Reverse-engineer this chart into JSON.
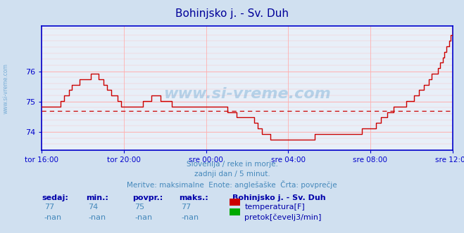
{
  "title": "Bohinjsko j. - Sv. Duh",
  "title_color": "#000099",
  "bg_color": "#d0e0f0",
  "plot_bg_color": "#e8eff8",
  "grid_color": "#ffb0b0",
  "axis_color": "#0000cc",
  "line_color": "#cc0000",
  "avg_value": 74.7,
  "ylim": [
    73.4,
    77.5
  ],
  "yticks": [
    74,
    75,
    76
  ],
  "xtick_labels": [
    "tor 16:00",
    "tor 20:00",
    "sre 00:00",
    "sre 04:00",
    "sre 08:00",
    "sre 12:00"
  ],
  "subtitle1": "Slovenija / reke in morje.",
  "subtitle2": "zadnji dan / 5 minut.",
  "subtitle3": "Meritve: maksimalne  Enote: anglešaške  Črta: povprečje",
  "subtitle_color": "#4488bb",
  "table_header_color": "#0000aa",
  "table_value_color": "#4488bb",
  "station_label": "Bohinjsko j. - Sv. Duh",
  "sedaj": "77",
  "min_val": "74",
  "povpr_val": "75",
  "maks_val": "77",
  "sedaj2": "-nan",
  "min_val2": "-nan",
  "povpr_val2": "-nan",
  "maks_val2": "-nan",
  "temp_color": "#cc0000",
  "pretok_color": "#00aa00",
  "watermark_color": "#5599cc",
  "side_label_color": "#5599cc",
  "temp_data": [
    74.84,
    74.84,
    74.84,
    74.84,
    74.84,
    74.84,
    74.84,
    74.84,
    74.84,
    74.84,
    74.84,
    74.84,
    75.02,
    75.02,
    75.2,
    75.2,
    75.2,
    75.38,
    75.38,
    75.56,
    75.56,
    75.56,
    75.56,
    75.56,
    75.74,
    75.74,
    75.74,
    75.74,
    75.74,
    75.74,
    75.74,
    75.92,
    75.92,
    75.92,
    75.92,
    75.92,
    75.74,
    75.74,
    75.74,
    75.56,
    75.56,
    75.38,
    75.38,
    75.38,
    75.2,
    75.2,
    75.2,
    75.2,
    75.02,
    75.02,
    74.84,
    74.84,
    74.84,
    74.84,
    74.84,
    74.84,
    74.84,
    74.84,
    74.84,
    74.84,
    74.84,
    74.84,
    74.84,
    74.84,
    75.02,
    75.02,
    75.02,
    75.02,
    75.02,
    75.2,
    75.2,
    75.2,
    75.2,
    75.2,
    75.2,
    75.02,
    75.02,
    75.02,
    75.02,
    75.02,
    75.02,
    75.02,
    74.84,
    74.84,
    74.84,
    74.84,
    74.84,
    74.84,
    74.84,
    74.84,
    74.84,
    74.84,
    74.84,
    74.84,
    74.84,
    74.84,
    74.84,
    74.84,
    74.84,
    74.84,
    74.84,
    74.84,
    74.84,
    74.84,
    74.84,
    74.84,
    74.84,
    74.84,
    74.84,
    74.84,
    74.84,
    74.84,
    74.84,
    74.84,
    74.84,
    74.84,
    74.84,
    74.66,
    74.66,
    74.66,
    74.66,
    74.66,
    74.66,
    74.48,
    74.48,
    74.48,
    74.48,
    74.48,
    74.48,
    74.48,
    74.48,
    74.48,
    74.48,
    74.48,
    74.3,
    74.3,
    74.12,
    74.12,
    74.12,
    73.94,
    73.94,
    73.94,
    73.94,
    73.94,
    73.76,
    73.76,
    73.76,
    73.76,
    73.76,
    73.76,
    73.76,
    73.76,
    73.76,
    73.76,
    73.76,
    73.76,
    73.76,
    73.76,
    73.76,
    73.76,
    73.76,
    73.76,
    73.76,
    73.76,
    73.76,
    73.76,
    73.76,
    73.76,
    73.76,
    73.76,
    73.76,
    73.76,
    73.94,
    73.94,
    73.94,
    73.94,
    73.94,
    73.94,
    73.94,
    73.94,
    73.94,
    73.94,
    73.94,
    73.94,
    73.94,
    73.94,
    73.94,
    73.94,
    73.94,
    73.94,
    73.94,
    73.94,
    73.94,
    73.94,
    73.94,
    73.94,
    73.94,
    73.94,
    73.94,
    73.94,
    73.94,
    73.94,
    74.12,
    74.12,
    74.12,
    74.12,
    74.12,
    74.12,
    74.12,
    74.12,
    74.12,
    74.3,
    74.3,
    74.3,
    74.48,
    74.48,
    74.48,
    74.48,
    74.66,
    74.66,
    74.66,
    74.66,
    74.84,
    74.84,
    74.84,
    74.84,
    74.84,
    74.84,
    74.84,
    74.84,
    75.02,
    75.02,
    75.02,
    75.02,
    75.02,
    75.2,
    75.2,
    75.2,
    75.38,
    75.38,
    75.38,
    75.56,
    75.56,
    75.56,
    75.74,
    75.74,
    75.92,
    75.92,
    75.92,
    75.92,
    76.1,
    76.28,
    76.28,
    76.46,
    76.64,
    76.82,
    76.82,
    77.0,
    77.18,
    77.36
  ]
}
